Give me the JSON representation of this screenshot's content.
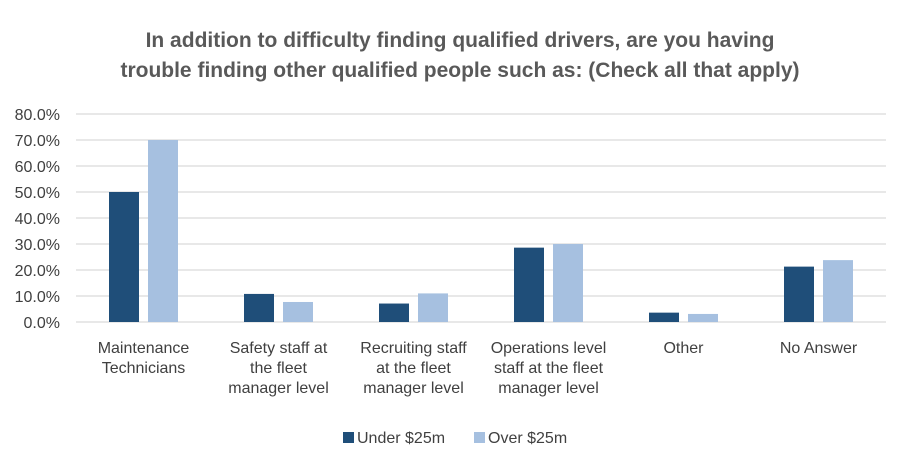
{
  "chart_data": {
    "type": "bar",
    "title_lines": [
      "In addition to difficulty finding qualified drivers, are you having",
      "trouble finding other qualified people such as: (Check all that apply)"
    ],
    "categories": [
      [
        "Maintenance",
        "Technicians"
      ],
      [
        "Safety staff at",
        "the fleet",
        "manager level"
      ],
      [
        "Recruiting staff",
        "at the fleet",
        "manager level"
      ],
      [
        "Operations level",
        "staff at the fleet",
        "manager level"
      ],
      [
        "Other"
      ],
      [
        "No Answer"
      ]
    ],
    "series": [
      {
        "name": "Under $25m",
        "color": "#1f4e79",
        "values": [
          50.0,
          10.8,
          7.1,
          28.6,
          3.6,
          21.3
        ]
      },
      {
        "name": "Over $25m",
        "color": "#a6c0e0",
        "values": [
          70.0,
          7.7,
          11.0,
          30.0,
          3.1,
          23.8
        ]
      }
    ],
    "ylim": [
      0,
      80
    ],
    "yticks": [
      "0.0%",
      "10.0%",
      "20.0%",
      "30.0%",
      "40.0%",
      "50.0%",
      "60.0%",
      "70.0%",
      "80.0%"
    ],
    "grid": true,
    "legend_position": "bottom",
    "gridline_color": "#d9d9d9"
  }
}
